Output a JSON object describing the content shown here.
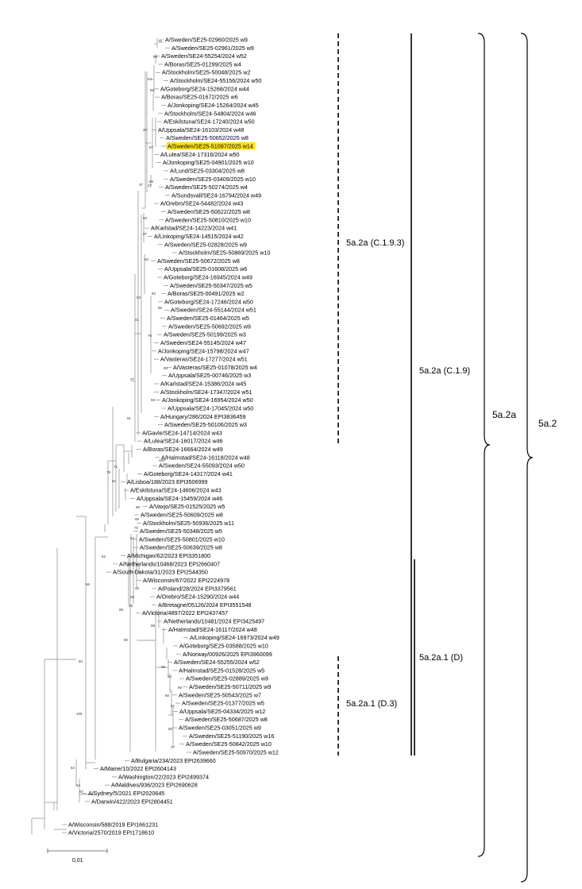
{
  "highlight_color": "#ffe21a",
  "line_color": "#888888",
  "leaves": [
    {
      "label": "A/Sweden/SE25-02960/2025 w9"
    },
    {
      "label": "A/Sweden/SE25-02961/2025 w9"
    },
    {
      "label": "A/Sweden/SE24-55254/2024 w52"
    },
    {
      "label": "A/Boras/SE25-01299/2025 w4"
    },
    {
      "label": "A/Stockholm/SE25-50048/2025 w2"
    },
    {
      "label": "A/Stockholm/SE24-55156/2024 w50"
    },
    {
      "label": "A/Goteborg/SE24-15268/2024 w44"
    },
    {
      "label": "A/Boras/SE25-01672/2025 w6"
    },
    {
      "label": "A/Jonkoping/SE24-15264/2024 w45"
    },
    {
      "label": "A/Stockholm/SE24-54804/2024 w46"
    },
    {
      "label": "A/Eskilstuna/SE24-17240/2024 w50"
    },
    {
      "label": "A/Uppsala/SE24-16103/2024 w48"
    },
    {
      "label": "A/Sweden/SE25-50652/2025 w8"
    },
    {
      "label": "A/Sweden/SE25-51097/2025 w14",
      "highlight": true
    },
    {
      "label": "A/Lulea/SE24-17316/2024 w50"
    },
    {
      "label": "A/Jonkoping/SE25-04901/2025 w10"
    },
    {
      "label": "A/Lund/SE25-03304/2025 w8"
    },
    {
      "label": "A/Sweden/SE25-03409/2025 w10"
    },
    {
      "label": "A/Sweden/SE25-50274/2025 w4"
    },
    {
      "label": "A/Sundsvall/SE24-16794/2024 w49"
    },
    {
      "label": "A/Orebro/SE24-54482/2024 w43"
    },
    {
      "label": "A/Sweden/SE25-50622/2025 w8"
    },
    {
      "label": "A/Sweden/SE25-50810/2025 w10"
    },
    {
      "label": "A/Karlstad/SE24-14223/2024 w41"
    },
    {
      "label": "A/Linkoping/SE24-14515/2024 w42"
    },
    {
      "label": "A/Sweden/SE25-02828/2025 w9"
    },
    {
      "label": "A/Stockholm/SE25-50869/2025 w10"
    },
    {
      "label": "A/Sweden/SE25-50672/2025 w8"
    },
    {
      "label": "A/Uppsala/SE25-01608/2025 w6"
    },
    {
      "label": "A/Goteborg/SE24-16945/2024 w49"
    },
    {
      "label": "A/Sweden/SE25-50347/2025 w5"
    },
    {
      "label": "A/Boras/SE25-00491/2025 w2"
    },
    {
      "label": "A/Goteborg/SE24-17246/2024 w50"
    },
    {
      "label": "A/Sweden/SE24-55144/2024 w51"
    },
    {
      "label": "A/Sweden/SE25-01464/2025 w5"
    },
    {
      "label": "A/Sweden/SE25-50692/2025 w9"
    },
    {
      "label": "A/Sweden/SE25-50199/2025 w3"
    },
    {
      "label": "A/Sweden/SE24-55145/2024 w47"
    },
    {
      "label": "A/Jonkoping/SE24-15798/2024 w47"
    },
    {
      "label": "A/Vasteras/SE24-17277/2024 w51"
    },
    {
      "label": "A/Vasteras/SE25-01078/2025 w4"
    },
    {
      "label": "A/Uppsala/SE25-00746/2025 w3"
    },
    {
      "label": "A/Karlstad/SE24-15386/2024 w45"
    },
    {
      "label": "A/Stockholm/SE24-17347/2024 w51"
    },
    {
      "label": "A/Jonkoping/SE24-16954/2024 w50"
    },
    {
      "label": "A/Uppsala/SE24-17045/2024 w50"
    },
    {
      "label": "A/Hungary/286/2024 EPI3836459"
    },
    {
      "label": "A/Sweden/SE25-50106/2025 w3"
    },
    {
      "label": "A/Gavle/SE24-14714/2024 w43"
    },
    {
      "label": "A/Lulea/SE24-16017/2024 w46"
    },
    {
      "label": "A/Boras/SE24-16664/2024 w49"
    },
    {
      "label": "A/Halmstad/SE24-16118/2024 w48"
    },
    {
      "label": "A/Sweden/SE24-55093/2024 w50"
    },
    {
      "label": "A/Goteborg/SE24-14317/2024 w41"
    },
    {
      "label": "A/Lisboa/188/2023 EPI3506999"
    },
    {
      "label": "A/Eskilstuna/SE24-14606/2024 w43"
    },
    {
      "label": "A/Uppsala/SE24-15459/2024 w46"
    },
    {
      "label": "A/Vaxjo/SE25-01525/2025 w5"
    },
    {
      "label": "A/Sweden/SE25-50609/2025 w8"
    },
    {
      "label": "A/Stockholm/SE25-50936/2025 w11"
    },
    {
      "label": "A/Sweden/SE25-50348/2025 w5"
    },
    {
      "label": "A/Sweden/SE25-50801/2025 w10"
    },
    {
      "label": "A/Sweden/SE25-50639/2025 w8"
    },
    {
      "label": "A/Michigan/62/2023 EPI3351800"
    },
    {
      "label": "A/Netherlands/10468/2023 EPI2660407"
    },
    {
      "label": "A/South Dakota/31/2023 EPI2544350"
    },
    {
      "label": "A/Wisconsin/67/2022 EPI2224978"
    },
    {
      "label": "A/Poland/28/2024 EPI3379561"
    },
    {
      "label": "A/Orebro/SE24-15290/2024 w44"
    },
    {
      "label": "A/Bretagne/05126/2024 EPI3551548"
    },
    {
      "label": "A/Victoria/4897/2022 EPI2437457"
    },
    {
      "label": "A/Netherlands/10481/2024 EPI3425497"
    },
    {
      "label": "A/Halmstad/SE24-16117/2024 w48"
    },
    {
      "label": "A/Linkoping/SE24-16973/2024 w49"
    },
    {
      "label": "A/Goteborg/SE25-03588/2025 w10"
    },
    {
      "label": "A/Norway/00926/2025 EPI3960099"
    },
    {
      "label": "A/Sweden/SE24-55255/2024 w52"
    },
    {
      "label": "A/Halmstad/SE25-01528/2025 w5"
    },
    {
      "label": "A/Sweden/SE25-02889/2025 w9"
    },
    {
      "label": "A/Sweden/SE25-50711/2025 w9"
    },
    {
      "label": "A/Sweden/SE25-50543/2025 w7"
    },
    {
      "label": "A/Sweden/SE25-01377/2025 w5"
    },
    {
      "label": "A/Uppsala/SE25-04334/2025 w12"
    },
    {
      "label": "A/Sweden/SE25-50687/2025 w8"
    },
    {
      "label": "A/Sweden/SE25-03051/2025 w9"
    },
    {
      "label": "A/Sweden/SE25-51190/2025 w16"
    },
    {
      "label": "A/Sweden/SE25-50842/2025 w10"
    },
    {
      "label": "A/Sweden/SE25-50970/2025 w12"
    },
    {
      "label": "A/Bulgaria/234/2023 EPI2639660"
    },
    {
      "label": "A/Maine/10/2022 EPI2604143"
    },
    {
      "label": "A/Washington/22/2023 EPI2499374"
    },
    {
      "label": "A/Maldives/936/2023 EPI2690628"
    },
    {
      "label": "A/Sydney/5/2021 EPI2020645"
    },
    {
      "label": "A/Darwin/422/2023 EPI2804451"
    },
    {
      "label": "A/Wisconsin/588/2019 EPI1661231"
    },
    {
      "label": "A/Victoria/2570/2019 EPI1718610"
    }
  ],
  "bootstrap": [
    "70",
    "89",
    "63",
    "55",
    "37",
    "67",
    "37",
    "66",
    "47",
    "93",
    "37",
    "63",
    "53",
    "92",
    "86",
    "41",
    "76",
    "99",
    "37",
    "59",
    "91",
    "71",
    "100",
    "79",
    "61",
    "99",
    "98",
    "70",
    "64",
    "82",
    "56",
    "46",
    "30",
    "49",
    "99",
    "98",
    "60",
    "99",
    "63",
    "86",
    "66",
    "61",
    "50",
    "37",
    "50",
    "100",
    "54",
    "44",
    "67"
  ],
  "clades": [
    {
      "label": "5a.2a (C.1.9.3)",
      "style": "dashed"
    },
    {
      "label": "5a.2a (C.1.9)",
      "style": "solid"
    },
    {
      "label": "5a.2a.1 (D)",
      "style": "solid"
    },
    {
      "label": "5a.2a.1 (D.3)",
      "style": "dashed"
    },
    {
      "label": "5a.2a",
      "style": "brace"
    },
    {
      "label": "5a.2",
      "style": "brace"
    }
  ],
  "scale_bar": {
    "label": "0,01"
  }
}
